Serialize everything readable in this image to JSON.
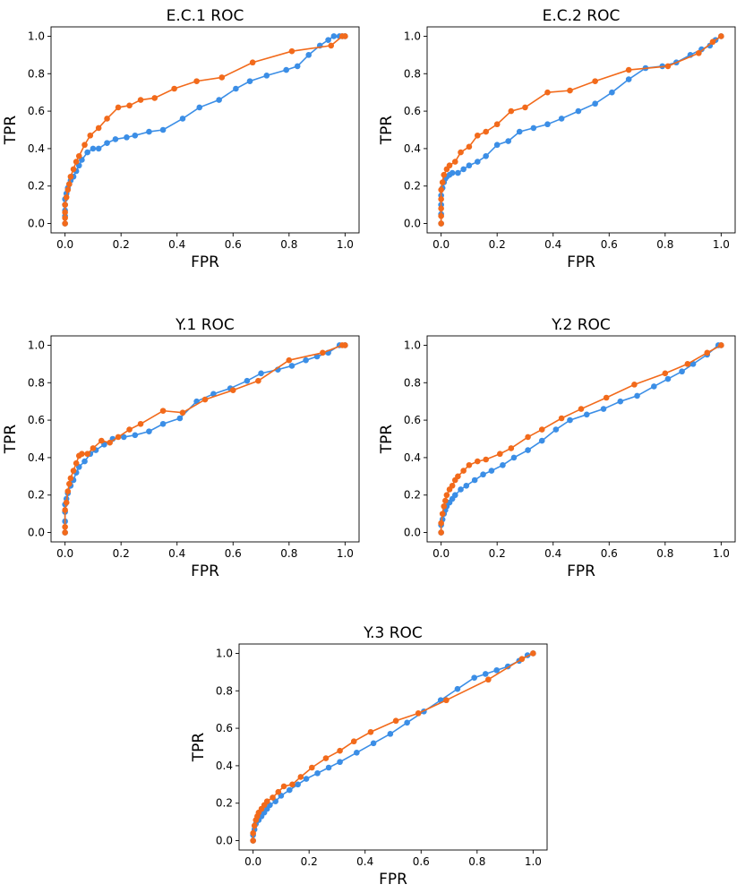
{
  "chart_data": [
    {
      "type": "line",
      "title": "E.C.1 ROC",
      "xlabel": "FPR",
      "ylabel": "TPR",
      "xlim": [
        -0.05,
        1.05
      ],
      "ylim": [
        -0.05,
        1.05
      ],
      "xticks": [
        0.0,
        0.2,
        0.4,
        0.6,
        0.8,
        1.0
      ],
      "yticks": [
        0.0,
        0.2,
        0.4,
        0.6,
        0.8,
        1.0
      ],
      "xtick_labels": [
        "0.0",
        "0.2",
        "0.4",
        "0.6",
        "0.8",
        "1.0"
      ],
      "ytick_labels": [
        "0.0",
        "0.2",
        "0.4",
        "0.6",
        "0.8",
        "1.0"
      ],
      "grid": false,
      "series": [
        {
          "name": "blue",
          "color": "#3b8ee6",
          "x": [
            0.0,
            0.0,
            0.0,
            0.0,
            0.0,
            0.005,
            0.01,
            0.015,
            0.02,
            0.03,
            0.04,
            0.05,
            0.06,
            0.08,
            0.1,
            0.12,
            0.15,
            0.18,
            0.22,
            0.25,
            0.3,
            0.35,
            0.42,
            0.48,
            0.55,
            0.61,
            0.66,
            0.72,
            0.79,
            0.83,
            0.87,
            0.91,
            0.94,
            0.96,
            0.98,
            0.99,
            1.0
          ],
          "y": [
            0.0,
            0.04,
            0.07,
            0.1,
            0.13,
            0.16,
            0.19,
            0.21,
            0.23,
            0.25,
            0.28,
            0.31,
            0.34,
            0.38,
            0.4,
            0.4,
            0.43,
            0.45,
            0.46,
            0.47,
            0.49,
            0.5,
            0.56,
            0.62,
            0.66,
            0.72,
            0.76,
            0.79,
            0.82,
            0.84,
            0.9,
            0.95,
            0.98,
            1.0,
            1.0,
            1.0,
            1.0
          ]
        },
        {
          "name": "orange",
          "color": "#f26a1b",
          "x": [
            0.0,
            0.0,
            0.0,
            0.0,
            0.005,
            0.01,
            0.015,
            0.02,
            0.03,
            0.04,
            0.05,
            0.07,
            0.09,
            0.12,
            0.15,
            0.19,
            0.23,
            0.27,
            0.32,
            0.39,
            0.47,
            0.56,
            0.67,
            0.81,
            0.95,
            0.99,
            1.0
          ],
          "y": [
            0.0,
            0.03,
            0.06,
            0.1,
            0.14,
            0.18,
            0.21,
            0.25,
            0.29,
            0.33,
            0.36,
            0.42,
            0.47,
            0.51,
            0.56,
            0.62,
            0.63,
            0.66,
            0.67,
            0.72,
            0.76,
            0.78,
            0.86,
            0.92,
            0.95,
            1.0,
            1.0
          ]
        }
      ]
    },
    {
      "type": "line",
      "title": "E.C.2 ROC",
      "xlabel": "FPR",
      "ylabel": "TPR",
      "xlim": [
        -0.05,
        1.05
      ],
      "ylim": [
        -0.05,
        1.05
      ],
      "xticks": [
        0.0,
        0.2,
        0.4,
        0.6,
        0.8,
        1.0
      ],
      "yticks": [
        0.0,
        0.2,
        0.4,
        0.6,
        0.8,
        1.0
      ],
      "xtick_labels": [
        "0.0",
        "0.2",
        "0.4",
        "0.6",
        "0.8",
        "1.0"
      ],
      "ytick_labels": [
        "0.0",
        "0.2",
        "0.4",
        "0.6",
        "0.8",
        "1.0"
      ],
      "grid": false,
      "series": [
        {
          "name": "blue",
          "color": "#3b8ee6",
          "x": [
            0.0,
            0.0,
            0.0,
            0.0,
            0.005,
            0.01,
            0.015,
            0.02,
            0.03,
            0.04,
            0.06,
            0.08,
            0.1,
            0.13,
            0.16,
            0.2,
            0.24,
            0.28,
            0.33,
            0.38,
            0.43,
            0.49,
            0.55,
            0.61,
            0.67,
            0.73,
            0.79,
            0.84,
            0.89,
            0.93,
            0.96,
            0.98,
            1.0
          ],
          "y": [
            0.0,
            0.05,
            0.1,
            0.15,
            0.19,
            0.22,
            0.24,
            0.25,
            0.26,
            0.27,
            0.27,
            0.29,
            0.31,
            0.33,
            0.36,
            0.42,
            0.44,
            0.49,
            0.51,
            0.53,
            0.56,
            0.6,
            0.64,
            0.7,
            0.77,
            0.83,
            0.84,
            0.86,
            0.9,
            0.93,
            0.95,
            0.98,
            1.0
          ]
        },
        {
          "name": "orange",
          "color": "#f26a1b",
          "x": [
            0.0,
            0.0,
            0.0,
            0.0,
            0.0,
            0.005,
            0.01,
            0.02,
            0.03,
            0.05,
            0.07,
            0.1,
            0.13,
            0.16,
            0.2,
            0.25,
            0.3,
            0.38,
            0.46,
            0.55,
            0.67,
            0.81,
            0.92,
            0.97,
            1.0
          ],
          "y": [
            0.0,
            0.04,
            0.08,
            0.13,
            0.18,
            0.22,
            0.26,
            0.29,
            0.31,
            0.33,
            0.38,
            0.41,
            0.47,
            0.49,
            0.53,
            0.6,
            0.62,
            0.7,
            0.71,
            0.76,
            0.82,
            0.84,
            0.91,
            0.97,
            1.0
          ]
        }
      ]
    },
    {
      "type": "line",
      "title": "Y.1 ROC",
      "xlabel": "FPR",
      "ylabel": "TPR",
      "xlim": [
        -0.05,
        1.05
      ],
      "ylim": [
        -0.05,
        1.05
      ],
      "xticks": [
        0.0,
        0.2,
        0.4,
        0.6,
        0.8,
        1.0
      ],
      "yticks": [
        0.0,
        0.2,
        0.4,
        0.6,
        0.8,
        1.0
      ],
      "xtick_labels": [
        "0.0",
        "0.2",
        "0.4",
        "0.6",
        "0.8",
        "1.0"
      ],
      "ytick_labels": [
        "0.0",
        "0.2",
        "0.4",
        "0.6",
        "0.8",
        "1.0"
      ],
      "grid": false,
      "series": [
        {
          "name": "blue",
          "color": "#3b8ee6",
          "x": [
            0.0,
            0.0,
            0.0,
            0.0,
            0.005,
            0.01,
            0.02,
            0.03,
            0.04,
            0.05,
            0.07,
            0.09,
            0.11,
            0.14,
            0.17,
            0.21,
            0.25,
            0.3,
            0.35,
            0.41,
            0.47,
            0.53,
            0.59,
            0.65,
            0.7,
            0.76,
            0.81,
            0.86,
            0.9,
            0.94,
            0.98,
            1.0
          ],
          "y": [
            0.0,
            0.06,
            0.11,
            0.15,
            0.18,
            0.21,
            0.25,
            0.28,
            0.32,
            0.35,
            0.38,
            0.42,
            0.44,
            0.47,
            0.5,
            0.51,
            0.52,
            0.54,
            0.58,
            0.61,
            0.7,
            0.74,
            0.77,
            0.81,
            0.85,
            0.87,
            0.89,
            0.92,
            0.94,
            0.96,
            1.0,
            1.0
          ]
        },
        {
          "name": "orange",
          "color": "#f26a1b",
          "x": [
            0.0,
            0.0,
            0.0,
            0.005,
            0.01,
            0.015,
            0.02,
            0.03,
            0.04,
            0.05,
            0.06,
            0.08,
            0.1,
            0.13,
            0.16,
            0.19,
            0.23,
            0.27,
            0.35,
            0.42,
            0.5,
            0.6,
            0.69,
            0.8,
            0.92,
            0.99,
            1.0
          ],
          "y": [
            0.0,
            0.03,
            0.12,
            0.16,
            0.22,
            0.26,
            0.29,
            0.33,
            0.37,
            0.41,
            0.42,
            0.42,
            0.45,
            0.49,
            0.48,
            0.51,
            0.55,
            0.58,
            0.65,
            0.64,
            0.71,
            0.76,
            0.81,
            0.92,
            0.96,
            1.0,
            1.0
          ]
        }
      ]
    },
    {
      "type": "line",
      "title": "Y.2 ROC",
      "xlabel": "FPR",
      "ylabel": "TPR",
      "xlim": [
        -0.05,
        1.05
      ],
      "ylim": [
        -0.05,
        1.05
      ],
      "xticks": [
        0.0,
        0.2,
        0.4,
        0.6,
        0.8,
        1.0
      ],
      "yticks": [
        0.0,
        0.2,
        0.4,
        0.6,
        0.8,
        1.0
      ],
      "xtick_labels": [
        "0.0",
        "0.2",
        "0.4",
        "0.6",
        "0.8",
        "1.0"
      ],
      "ytick_labels": [
        "0.0",
        "0.2",
        "0.4",
        "0.6",
        "0.8",
        "1.0"
      ],
      "grid": false,
      "series": [
        {
          "name": "blue",
          "color": "#3b8ee6",
          "x": [
            0.0,
            0.0,
            0.005,
            0.01,
            0.015,
            0.02,
            0.03,
            0.04,
            0.05,
            0.07,
            0.09,
            0.12,
            0.15,
            0.18,
            0.22,
            0.26,
            0.31,
            0.36,
            0.41,
            0.46,
            0.52,
            0.58,
            0.64,
            0.7,
            0.76,
            0.81,
            0.86,
            0.9,
            0.95,
            0.99,
            1.0
          ],
          "y": [
            0.0,
            0.04,
            0.07,
            0.1,
            0.12,
            0.14,
            0.16,
            0.18,
            0.2,
            0.23,
            0.25,
            0.28,
            0.31,
            0.33,
            0.36,
            0.4,
            0.44,
            0.49,
            0.55,
            0.6,
            0.63,
            0.66,
            0.7,
            0.73,
            0.78,
            0.82,
            0.86,
            0.9,
            0.95,
            1.0,
            1.0
          ]
        },
        {
          "name": "orange",
          "color": "#f26a1b",
          "x": [
            0.0,
            0.0,
            0.005,
            0.01,
            0.015,
            0.02,
            0.03,
            0.04,
            0.05,
            0.06,
            0.08,
            0.1,
            0.13,
            0.16,
            0.21,
            0.25,
            0.31,
            0.36,
            0.43,
            0.5,
            0.59,
            0.69,
            0.8,
            0.88,
            0.95,
            1.0
          ],
          "y": [
            0.0,
            0.05,
            0.1,
            0.14,
            0.17,
            0.2,
            0.23,
            0.25,
            0.28,
            0.3,
            0.33,
            0.36,
            0.38,
            0.39,
            0.42,
            0.45,
            0.51,
            0.55,
            0.61,
            0.66,
            0.72,
            0.79,
            0.85,
            0.9,
            0.96,
            1.0
          ]
        }
      ]
    },
    {
      "type": "line",
      "title": "Y.3 ROC",
      "xlabel": "FPR",
      "ylabel": "TPR",
      "xlim": [
        -0.05,
        1.05
      ],
      "ylim": [
        -0.05,
        1.05
      ],
      "xticks": [
        0.0,
        0.2,
        0.4,
        0.6,
        0.8,
        1.0
      ],
      "yticks": [
        0.0,
        0.2,
        0.4,
        0.6,
        0.8,
        1.0
      ],
      "xtick_labels": [
        "0.0",
        "0.2",
        "0.4",
        "0.6",
        "0.8",
        "1.0"
      ],
      "ytick_labels": [
        "0.0",
        "0.2",
        "0.4",
        "0.6",
        "0.8",
        "1.0"
      ],
      "grid": false,
      "series": [
        {
          "name": "blue",
          "color": "#3b8ee6",
          "x": [
            0.0,
            0.0,
            0.005,
            0.01,
            0.02,
            0.03,
            0.04,
            0.05,
            0.06,
            0.08,
            0.1,
            0.13,
            0.16,
            0.19,
            0.23,
            0.27,
            0.31,
            0.37,
            0.43,
            0.49,
            0.55,
            0.61,
            0.67,
            0.73,
            0.79,
            0.83,
            0.87,
            0.91,
            0.95,
            0.98,
            1.0
          ],
          "y": [
            0.0,
            0.03,
            0.06,
            0.09,
            0.11,
            0.13,
            0.15,
            0.17,
            0.19,
            0.21,
            0.24,
            0.27,
            0.3,
            0.33,
            0.36,
            0.39,
            0.42,
            0.47,
            0.52,
            0.57,
            0.63,
            0.69,
            0.75,
            0.81,
            0.87,
            0.89,
            0.91,
            0.93,
            0.96,
            0.99,
            1.0
          ]
        },
        {
          "name": "orange",
          "color": "#f26a1b",
          "x": [
            0.0,
            0.0,
            0.005,
            0.01,
            0.015,
            0.02,
            0.03,
            0.04,
            0.05,
            0.07,
            0.09,
            0.11,
            0.14,
            0.17,
            0.21,
            0.26,
            0.31,
            0.36,
            0.42,
            0.51,
            0.59,
            0.69,
            0.84,
            0.96,
            1.0
          ],
          "y": [
            0.0,
            0.04,
            0.08,
            0.11,
            0.13,
            0.15,
            0.17,
            0.19,
            0.21,
            0.23,
            0.26,
            0.29,
            0.3,
            0.34,
            0.39,
            0.44,
            0.48,
            0.53,
            0.58,
            0.64,
            0.68,
            0.75,
            0.86,
            0.97,
            1.0
          ]
        }
      ]
    }
  ]
}
